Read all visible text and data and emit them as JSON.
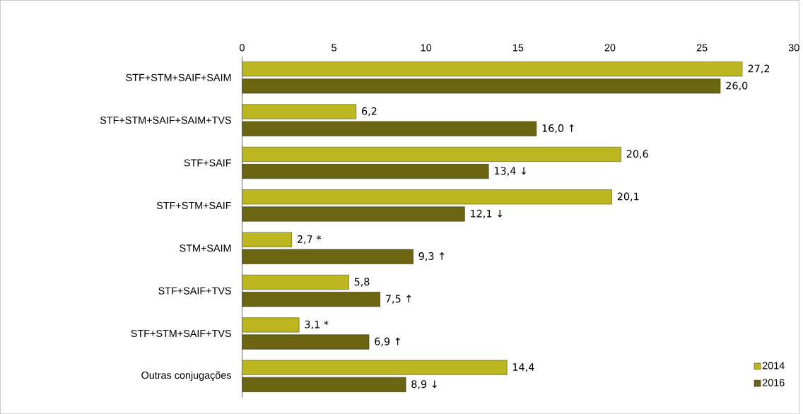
{
  "chart_data": {
    "type": "bar",
    "orientation": "horizontal",
    "categories": [
      "STF+STM+SAIF+SAIM",
      "STF+STM+SAIF+SAIM+TVS",
      "STF+SAIF",
      "STF+STM+SAIF",
      "STM+SAIM",
      "STF+SAIF+TVS",
      "STF+STM+SAIF+TVS",
      "Outras conjugações"
    ],
    "series": [
      {
        "name": "2014",
        "color": "#bcb620",
        "values": [
          27.2,
          6.2,
          20.6,
          20.1,
          2.7,
          5.8,
          3.1,
          14.4
        ],
        "value_labels": [
          "27,2",
          "6,2",
          "20,6",
          "20,1",
          "2,7 *",
          "5,8",
          "3,1 *",
          "14,4"
        ]
      },
      {
        "name": "2016",
        "color": "#6b6511",
        "values": [
          26.0,
          16.0,
          13.4,
          12.1,
          9.3,
          7.5,
          6.9,
          8.9
        ],
        "value_labels": [
          "26,0",
          "16,0 ↑",
          "13,4 ↓",
          "12,1 ↓",
          "9,3 ↑",
          "7,5 ↑",
          "6,9 ↑",
          "8,9 ↓"
        ]
      }
    ],
    "xlim": [
      0,
      30
    ],
    "xticks": [
      0,
      5,
      10,
      15,
      20,
      25,
      30
    ],
    "legend": "bottom right"
  }
}
